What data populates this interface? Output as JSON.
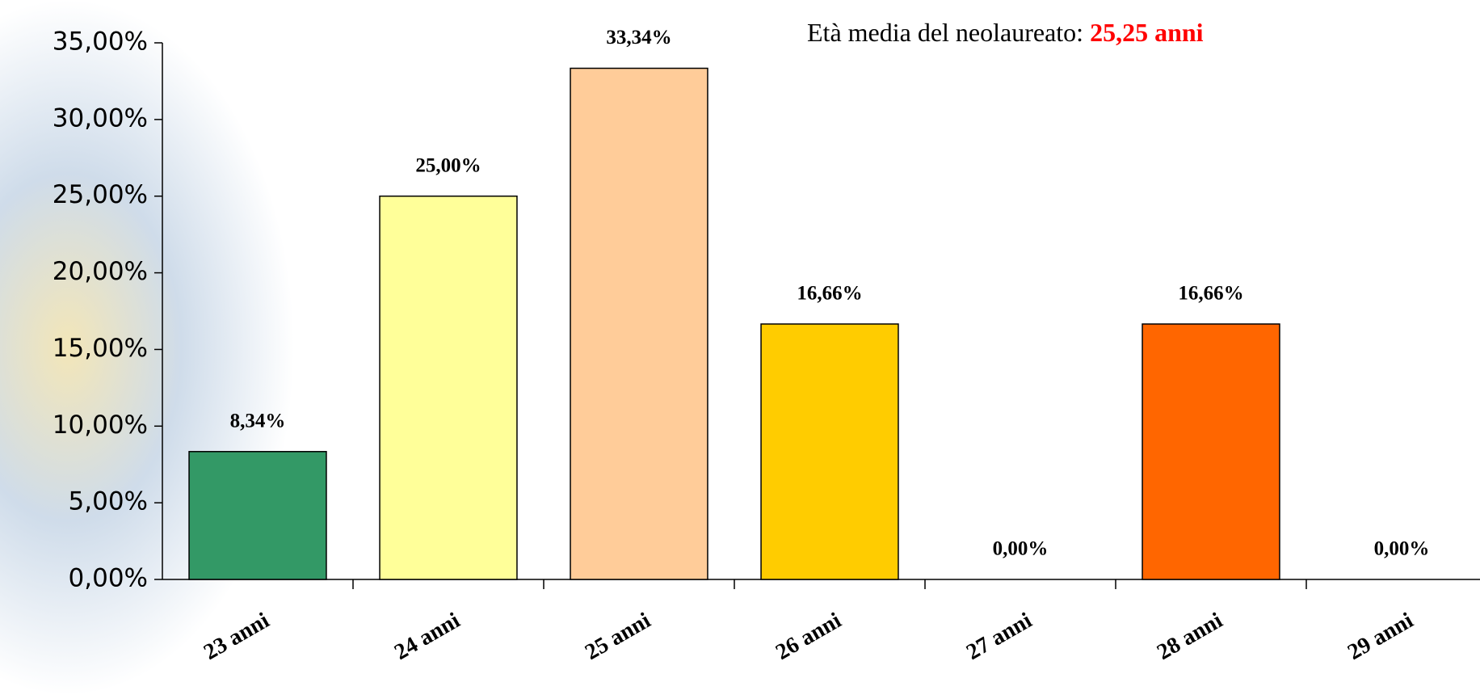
{
  "chart_data": {
    "type": "bar",
    "annotation": "Età media del neolaureato:",
    "annotation_highlight": "25,25 anni",
    "annotation_highlight_color": "#ff0000",
    "categories": [
      "23 anni",
      "24 anni",
      "25 anni",
      "26 anni",
      "27 anni",
      "28 anni",
      "29 anni"
    ],
    "values": [
      8.34,
      25,
      33.34,
      16.66,
      0,
      16.66,
      0
    ],
    "value_labels": [
      "8,34%",
      "25,00%",
      "33,34%",
      "16,66%",
      "0,00%",
      "16,66%",
      "0,00%"
    ],
    "colors": [
      "#339966",
      "#ffff99",
      "#ffcc99",
      "#ffcc00",
      "#ff9900",
      "#ff6600",
      "#cc3300"
    ],
    "ylim": [
      0,
      35
    ],
    "yticks": [
      {
        "value": 0,
        "label": "0,00%"
      },
      {
        "value": 5,
        "label": "5,00%"
      },
      {
        "value": 10,
        "label": "10,00%"
      },
      {
        "value": 15,
        "label": "15,00%"
      },
      {
        "value": 20,
        "label": "20,00%"
      },
      {
        "value": 25,
        "label": "25,00%"
      },
      {
        "value": 30,
        "label": "30,00%"
      },
      {
        "value": 35,
        "label": "35,00%"
      }
    ],
    "grid": false
  }
}
